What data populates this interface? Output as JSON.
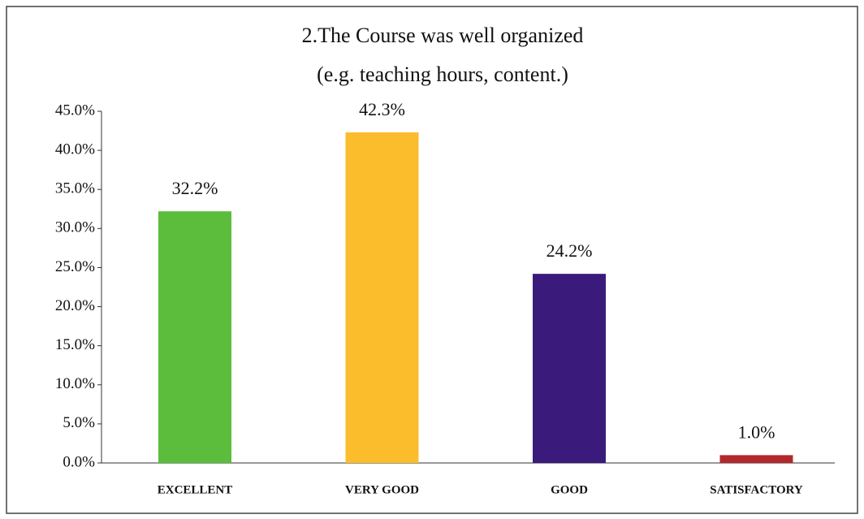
{
  "chart_data": {
    "type": "bar",
    "title": [
      "2.The Course was well organized",
      "(e.g. teaching hours, content.)"
    ],
    "categories": [
      "EXCELLENT",
      "VERY GOOD",
      "GOOD",
      "SATISFACTORY"
    ],
    "values": [
      32.2,
      42.3,
      24.2,
      1.0
    ],
    "value_labels": [
      "32.2%",
      "42.3%",
      "24.2%",
      "1.0%"
    ],
    "colors": [
      "#5cbc3c",
      "#fbbd2c",
      "#3a1b7c",
      "#b3282c"
    ],
    "ylim": [
      0,
      45
    ],
    "yticks": [
      {
        "value": 0,
        "label": "0.0%"
      },
      {
        "value": 5,
        "label": "5.0%"
      },
      {
        "value": 10,
        "label": "10.0%"
      },
      {
        "value": 15,
        "label": "15.0%"
      },
      {
        "value": 20,
        "label": "20.0%"
      },
      {
        "value": 25,
        "label": "25.0%"
      },
      {
        "value": 30,
        "label": "30.0%"
      },
      {
        "value": 35,
        "label": "35.0%"
      },
      {
        "value": 40,
        "label": "40.0%"
      },
      {
        "value": 45,
        "label": "45.0%"
      }
    ],
    "grid": false
  }
}
